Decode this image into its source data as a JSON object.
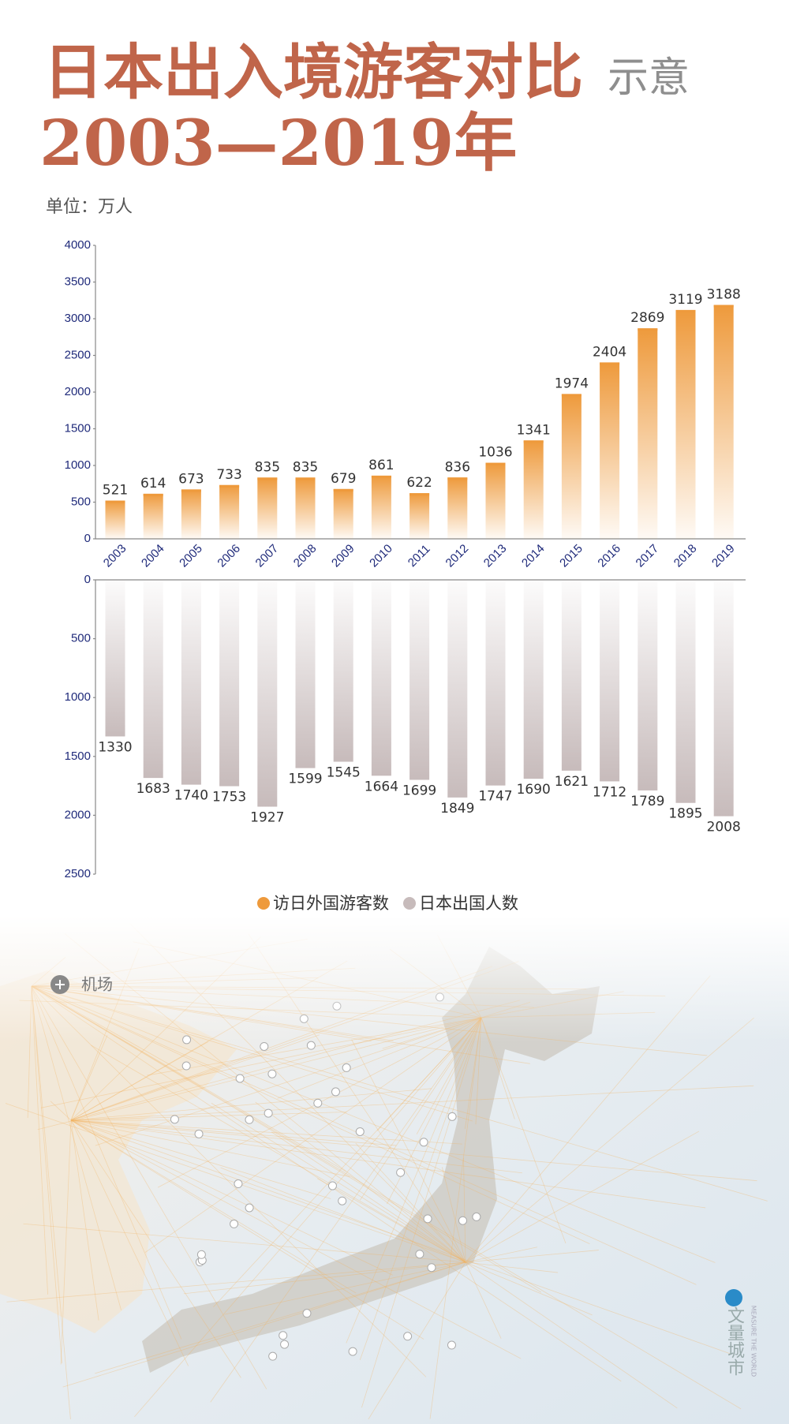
{
  "header": {
    "title": "日本出入境游客对比",
    "subtitle": "示意",
    "years": "2003—2019年",
    "unit": "单位：万人"
  },
  "chart_data": [
    {
      "type": "bar",
      "categories": [
        "2003",
        "2004",
        "2005",
        "2006",
        "2007",
        "2008",
        "2009",
        "2010",
        "2011",
        "2012",
        "2013",
        "2014",
        "2015",
        "2016",
        "2017",
        "2018",
        "2019"
      ],
      "series": [
        {
          "name": "访日外国游客数",
          "color": "#ee9a3c",
          "values": [
            521,
            614,
            673,
            733,
            835,
            835,
            679,
            861,
            622,
            836,
            1036,
            1341,
            1974,
            2404,
            2869,
            3119,
            3188
          ]
        }
      ],
      "ylim": [
        0,
        4000
      ],
      "yticks": [
        0,
        500,
        1000,
        1500,
        2000,
        2500,
        3000,
        3500,
        4000
      ]
    },
    {
      "type": "bar",
      "inverted": true,
      "series": [
        {
          "name": "日本出国人数",
          "color": "#c7bbbb",
          "values": [
            1330,
            1683,
            1740,
            1753,
            1927,
            1599,
            1545,
            1664,
            1699,
            1849,
            1747,
            1690,
            1621,
            1712,
            1789,
            1895,
            2008
          ]
        }
      ],
      "ylim": [
        0,
        2500
      ],
      "yticks": [
        0,
        500,
        1000,
        1500,
        2000,
        2500
      ]
    }
  ],
  "map": {
    "legend": "机场",
    "brand": "文量城市",
    "brand_sub": "MEASURE THE WORLD"
  }
}
